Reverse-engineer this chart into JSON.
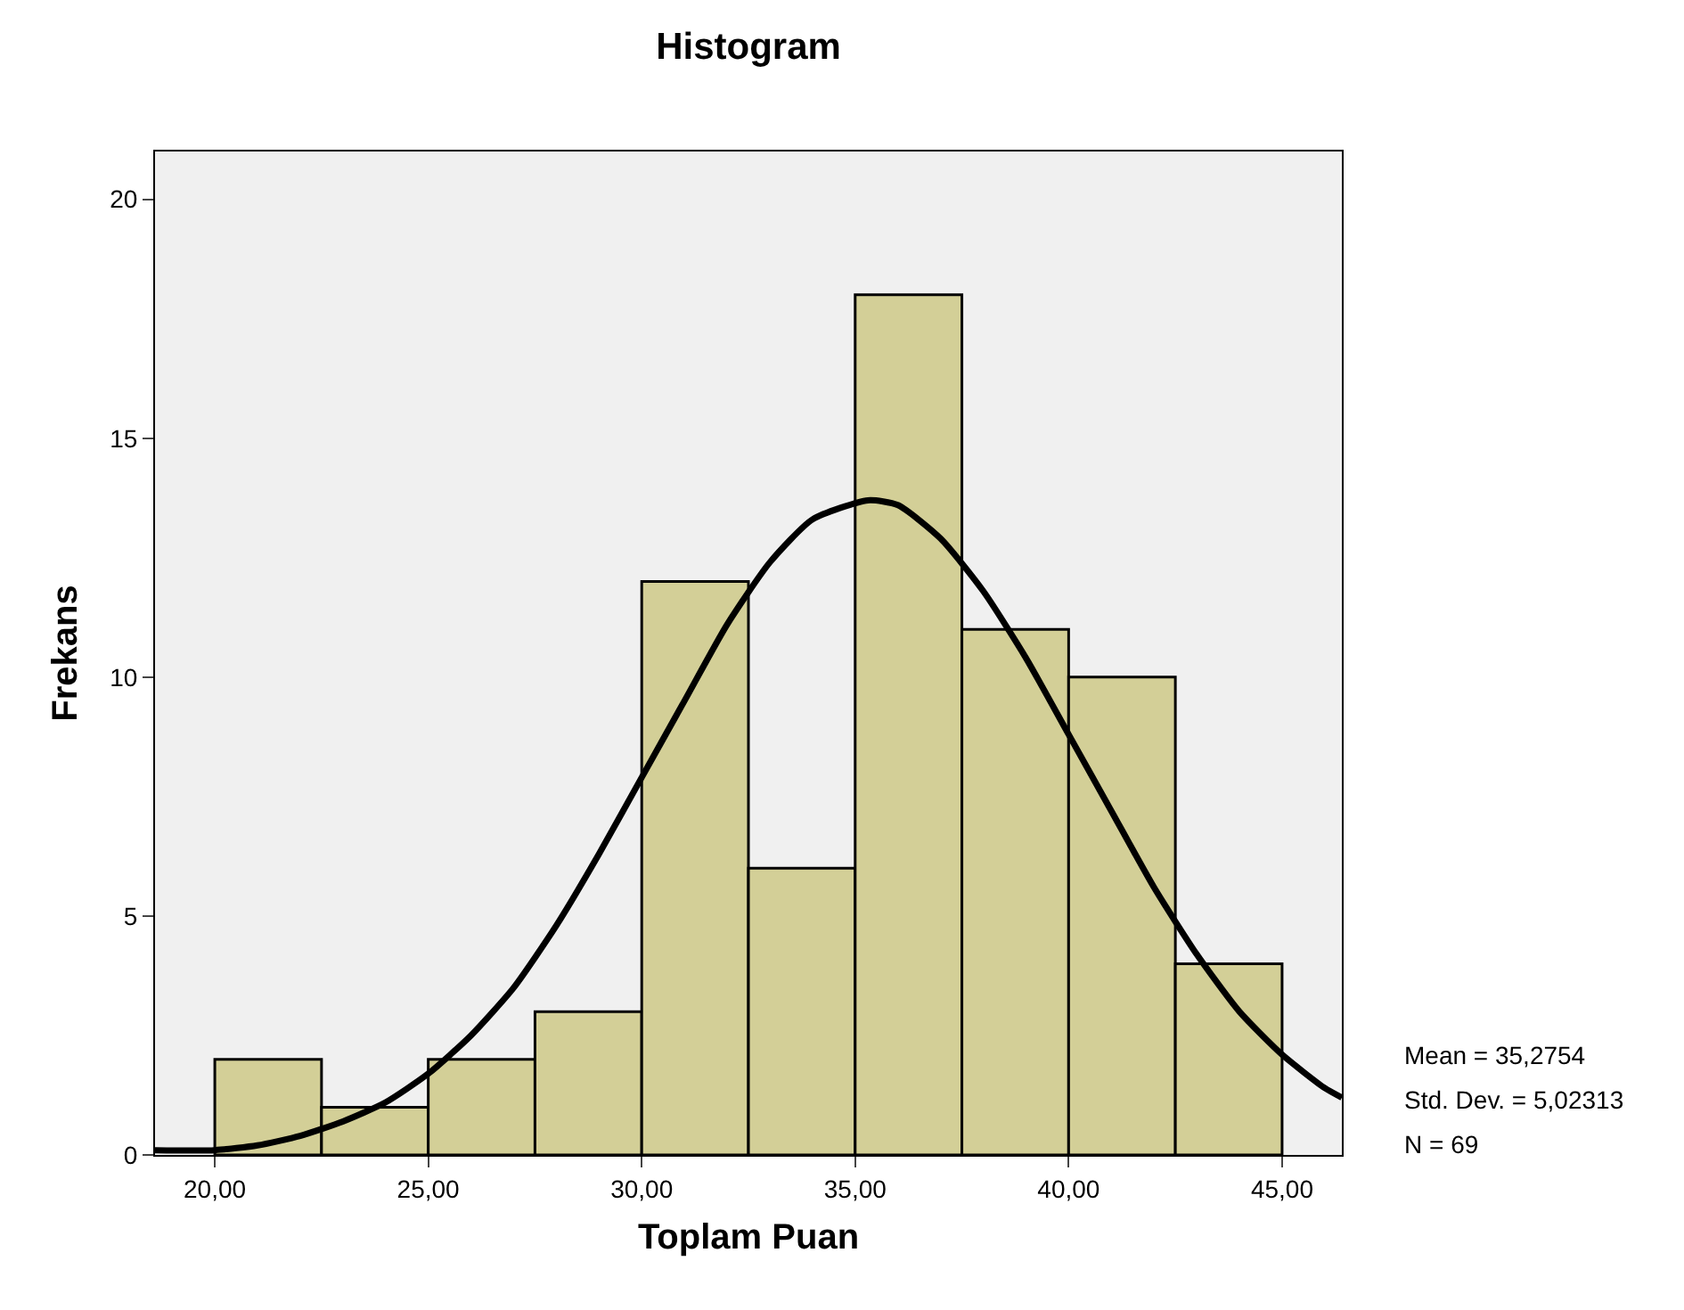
{
  "chart_data": {
    "type": "histogram",
    "title": "Histogram",
    "xlabel": "Toplam Puan",
    "ylabel": "Frekans",
    "bins": [
      20,
      22.5,
      25,
      27.5,
      30,
      32.5,
      35,
      37.5,
      40,
      42.5,
      45
    ],
    "values": [
      2,
      1,
      2,
      3,
      12,
      6,
      18,
      11,
      10,
      4
    ],
    "color": "#d3cf97",
    "series": [
      {
        "type": "line",
        "color": "#000000",
        "x": [
          18.6,
          20,
          21,
          22,
          23,
          24,
          25,
          26,
          27,
          28,
          29,
          30,
          31,
          32,
          33,
          34,
          35.3,
          36,
          37,
          38,
          39,
          40,
          41,
          42,
          43,
          44,
          45,
          46,
          46.4
        ],
        "values": [
          0.1,
          0.1,
          0.2,
          0.4,
          0.7,
          1.1,
          1.7,
          2.5,
          3.5,
          4.8,
          6.3,
          7.9,
          9.5,
          11.1,
          12.4,
          13.3,
          13.7,
          13.6,
          12.9,
          11.8,
          10.4,
          8.8,
          7.2,
          5.6,
          4.2,
          3.0,
          2.1,
          1.4,
          1.2
        ]
      }
    ],
    "xlim": [
      18.6,
      46.4
    ],
    "xticks": [
      {
        "value": 20,
        "label": "20,00"
      },
      {
        "value": 25,
        "label": "25,00"
      },
      {
        "value": 30,
        "label": "30,00"
      },
      {
        "value": 35,
        "label": "35,00"
      },
      {
        "value": 40,
        "label": "40,00"
      },
      {
        "value": 45,
        "label": "45,00"
      }
    ],
    "ylim": [
      0,
      21
    ],
    "yticks": [
      0,
      5,
      10,
      15,
      20
    ],
    "grid": false,
    "annotations": [
      "Mean = 35,2754",
      "Std. Dev. = 5,02313",
      "N = 69"
    ]
  }
}
